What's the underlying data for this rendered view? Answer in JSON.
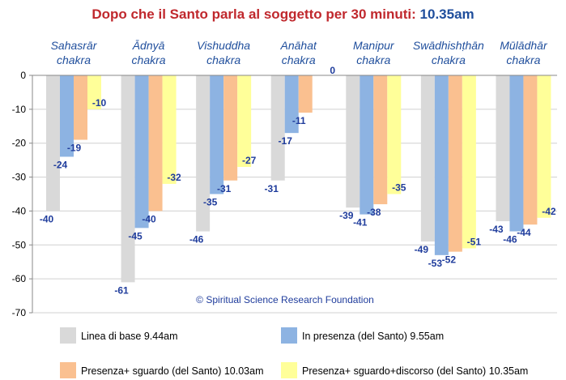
{
  "title_main": "Dopo che il Santo parla al soggetto per 30 minuti:",
  "title_time": "10.35am",
  "credit": "© Spiritual Science Research Foundation",
  "chart_data": {
    "type": "bar",
    "categories": [
      [
        "Sahasrār",
        "chakra"
      ],
      [
        "Ādnyā",
        "chakra"
      ],
      [
        "Vishuddha",
        "chakra"
      ],
      [
        "Anāhat",
        "chakra"
      ],
      [
        "Manipur",
        "chakra"
      ],
      [
        "Swādhishṭhān",
        "chakra"
      ],
      [
        "Mūlādhār",
        "chakra"
      ]
    ],
    "series": [
      {
        "name": "Linea di base 9.44am",
        "color": "#d9d9d9",
        "values": [
          -40,
          -61,
          -46,
          -31,
          -39,
          -49,
          -43
        ]
      },
      {
        "name": "In presenza (del Santo) 9.55am",
        "color": "#8db3e2",
        "values": [
          -24,
          -45,
          -35,
          -17,
          -41,
          -53,
          -46
        ]
      },
      {
        "name": "Presenza+ sguardo (del Santo) 10.03am",
        "color": "#fac090",
        "values": [
          -19,
          -40,
          -31,
          -11,
          -38,
          -52,
          -44
        ]
      },
      {
        "name": "Presenza+ sguardo+discorso (del Santo) 10.35am",
        "color": "#ffff99",
        "values": [
          -10,
          -32,
          -27,
          0,
          -35,
          -51,
          -42
        ]
      }
    ],
    "yticks": [
      "0",
      "-10",
      "-20",
      "-30",
      "-40",
      "-50",
      "-60",
      "-70"
    ],
    "ylim": [
      -70,
      0
    ],
    "grid": true,
    "legend_position": "bottom"
  }
}
